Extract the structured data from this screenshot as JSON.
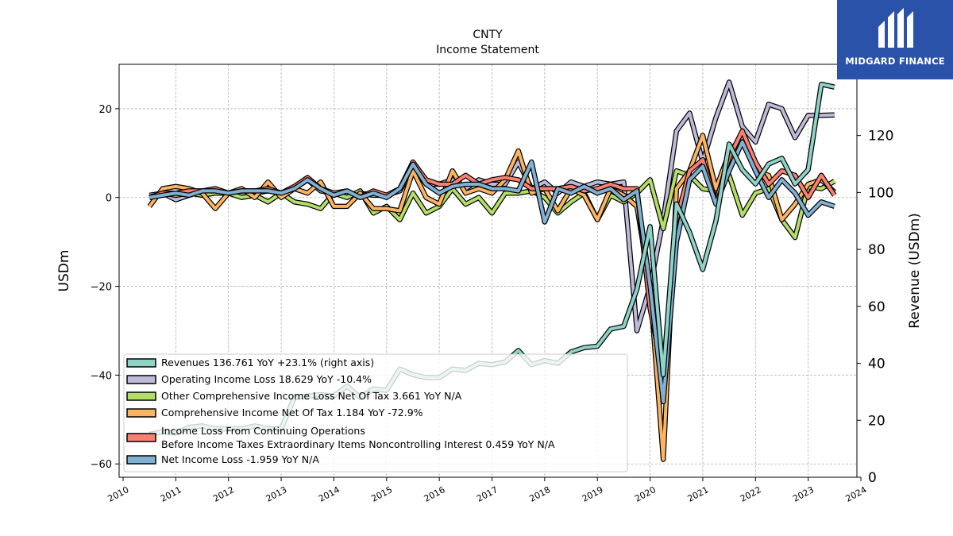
{
  "brand": {
    "name": "MIDGARD FINANCE",
    "bg": "#2a52a8"
  },
  "chart_data": {
    "type": "line",
    "title": "CNTY",
    "subtitle": "Income Statement",
    "ylabel_left": "USDm",
    "ylabel_right": "Revenue (USDm)",
    "xlim": [
      2010,
      2024
    ],
    "ylim_left": [
      -63,
      30
    ],
    "ylim_right": [
      0,
      145
    ],
    "x_ticks": [
      "2010",
      "2011",
      "2012",
      "2013",
      "2014",
      "2015",
      "2016",
      "2017",
      "2018",
      "2019",
      "2020",
      "2021",
      "2022",
      "2023",
      "2024"
    ],
    "y_ticks_left": [
      "−60",
      "−40",
      "−20",
      "0",
      "20"
    ],
    "y_ticks_right": [
      "0",
      "20",
      "40",
      "60",
      "80",
      "100",
      "120"
    ],
    "grid": true,
    "legend_position": "lower-left",
    "series": [
      {
        "name": "Revenues  136.761 YoY +23.1% (right axis)",
        "color": "#8dd3c7",
        "axis": "right",
        "z": 6,
        "x": [
          2010.5,
          2010.75,
          2011.0,
          2011.25,
          2011.5,
          2011.75,
          2012.0,
          2012.25,
          2012.5,
          2012.75,
          2013.0,
          2013.25,
          2013.5,
          2013.75,
          2014.0,
          2014.25,
          2014.5,
          2014.75,
          2015.0,
          2015.25,
          2015.5,
          2015.75,
          2016.0,
          2016.25,
          2016.5,
          2016.75,
          2017.0,
          2017.25,
          2017.5,
          2017.75,
          2018.0,
          2018.25,
          2018.5,
          2018.75,
          2019.0,
          2019.25,
          2019.5,
          2019.75,
          2020.0,
          2020.25,
          2020.5,
          2020.75,
          2021.0,
          2021.25,
          2021.5,
          2021.75,
          2022.0,
          2022.25,
          2022.5,
          2022.75,
          2023.0,
          2023.25,
          2023.5
        ],
        "values": [
          15,
          16,
          15.5,
          17.5,
          18,
          17,
          17,
          17,
          18,
          17,
          17,
          28,
          28.5,
          29,
          28.5,
          32,
          28,
          31,
          30.5,
          38,
          36,
          35,
          35,
          38,
          37.5,
          40,
          39.5,
          40.5,
          44.5,
          39.5,
          41,
          40,
          44,
          45.5,
          46,
          52,
          53,
          66,
          88,
          36,
          96,
          86,
          73,
          90,
          117,
          108,
          103,
          110,
          112,
          103,
          108,
          138,
          137
        ]
      },
      {
        "name": "Operating Income Loss  18.629 YoY -10.4%",
        "color": "#bebada",
        "axis": "left",
        "z": 1,
        "x": [
          2010.5,
          2010.75,
          2011.0,
          2011.25,
          2011.5,
          2011.75,
          2012.0,
          2012.25,
          2012.5,
          2012.75,
          2013.0,
          2013.25,
          2013.5,
          2013.75,
          2014.0,
          2014.25,
          2014.5,
          2014.75,
          2015.0,
          2015.25,
          2015.5,
          2015.75,
          2016.0,
          2016.25,
          2016.5,
          2016.75,
          2017.0,
          2017.25,
          2017.5,
          2017.75,
          2018.0,
          2018.25,
          2018.5,
          2018.75,
          2019.0,
          2019.25,
          2019.5,
          2019.75,
          2020.0,
          2020.25,
          2020.5,
          2020.75,
          2021.0,
          2021.25,
          2021.5,
          2021.75,
          2022.0,
          2022.25,
          2022.5,
          2022.75,
          2023.0,
          2023.25,
          2023.5
        ],
        "values": [
          0.5,
          1,
          -0.5,
          0.5,
          1.5,
          1,
          1,
          0.5,
          1,
          1.5,
          1,
          2,
          4,
          1.5,
          1,
          0.5,
          1,
          0.5,
          0.5,
          1.5,
          7,
          3,
          3,
          4,
          2,
          4,
          3,
          3,
          8,
          2,
          3.5,
          1,
          3.5,
          2.5,
          3.5,
          3,
          3.5,
          -30,
          -20,
          -5,
          15,
          19,
          8,
          18,
          26,
          16,
          12.5,
          21,
          20,
          13.5,
          18.5,
          18.5,
          18.6
        ]
      },
      {
        "name": "Other Comprehensive Income Loss Net Of Tax  3.661 YoY N/A",
        "color": "#b3de69",
        "axis": "left",
        "z": 2,
        "x": [
          2010.5,
          2010.75,
          2011.0,
          2011.25,
          2011.5,
          2011.75,
          2012.0,
          2012.25,
          2012.5,
          2012.75,
          2013.0,
          2013.25,
          2013.5,
          2013.75,
          2014.0,
          2014.25,
          2014.5,
          2014.75,
          2015.0,
          2015.25,
          2015.5,
          2015.75,
          2016.0,
          2016.25,
          2016.5,
          2016.75,
          2017.0,
          2017.25,
          2017.5,
          2017.75,
          2018.0,
          2018.25,
          2018.5,
          2018.75,
          2019.0,
          2019.25,
          2019.5,
          2019.75,
          2020.0,
          2020.25,
          2020.5,
          2020.75,
          2021.0,
          2021.25,
          2021.5,
          2021.75,
          2022.0,
          2022.25,
          2022.5,
          2022.75,
          2023.0,
          2023.25,
          2023.5
        ],
        "values": [
          0,
          1,
          0.5,
          1,
          0.5,
          1,
          1,
          0,
          0.5,
          -1,
          1,
          -1,
          -1.5,
          -2.5,
          1,
          0,
          1.5,
          -3.5,
          -2,
          -5,
          1,
          -3.5,
          -2,
          2,
          -1.5,
          0,
          -3.5,
          1,
          1,
          1.5,
          0,
          -3.5,
          -1,
          1,
          -5,
          0.5,
          -1,
          1,
          4,
          -7,
          6,
          5,
          2,
          1.5,
          5,
          -4,
          1,
          2,
          -5,
          -9,
          2.5,
          2,
          3.7
        ]
      },
      {
        "name": "Comprehensive Income Net Of Tax  1.184 YoY -72.9%",
        "color": "#fdb462",
        "axis": "left",
        "z": 3,
        "x": [
          2010.5,
          2010.75,
          2011.0,
          2011.25,
          2011.5,
          2011.75,
          2012.0,
          2012.25,
          2012.5,
          2012.75,
          2013.0,
          2013.25,
          2013.5,
          2013.75,
          2014.0,
          2014.25,
          2014.5,
          2014.75,
          2015.0,
          2015.25,
          2015.5,
          2015.75,
          2016.0,
          2016.25,
          2016.5,
          2016.75,
          2017.0,
          2017.25,
          2017.5,
          2017.75,
          2018.0,
          2018.25,
          2018.5,
          2018.75,
          2019.0,
          2019.25,
          2019.5,
          2019.75,
          2020.0,
          2020.25,
          2020.5,
          2020.75,
          2021.0,
          2021.25,
          2021.5,
          2021.75,
          2022.0,
          2022.25,
          2022.5,
          2022.75,
          2023.0,
          2023.25,
          2023.5
        ],
        "values": [
          -2,
          2,
          2.5,
          2,
          1,
          -2.5,
          1,
          2,
          0,
          3.5,
          0,
          2,
          1,
          3.5,
          -2,
          -2,
          1,
          -2.5,
          -2.5,
          -3,
          6,
          0,
          -1.5,
          6,
          1,
          2,
          1,
          4,
          10.5,
          1,
          2,
          -3,
          2,
          0.5,
          -5,
          2,
          0.5,
          -2,
          -20,
          -59,
          2,
          6,
          14,
          2,
          10,
          14,
          6,
          5,
          -5,
          -1.5,
          3,
          4,
          1.2
        ]
      },
      {
        "name": "Income Loss From Continuing Operations\nBefore Income Taxes Extraordinary Items Noncontrolling Interest  0.459 YoY N/A",
        "color": "#fb8072",
        "axis": "left",
        "z": 4,
        "x": [
          2010.5,
          2010.75,
          2011.0,
          2011.25,
          2011.5,
          2011.75,
          2012.0,
          2012.25,
          2012.5,
          2012.75,
          2013.0,
          2013.25,
          2013.5,
          2013.75,
          2014.0,
          2014.25,
          2014.5,
          2014.75,
          2015.0,
          2015.25,
          2015.5,
          2015.75,
          2016.0,
          2016.25,
          2016.5,
          2016.75,
          2017.0,
          2017.25,
          2017.5,
          2017.75,
          2018.0,
          2018.25,
          2018.5,
          2018.75,
          2019.0,
          2019.25,
          2019.5,
          2019.75,
          2020.0,
          2020.25,
          2020.5,
          2020.75,
          2021.0,
          2021.25,
          2021.5,
          2021.75,
          2022.0,
          2022.25,
          2022.5,
          2022.75,
          2023.0,
          2023.25,
          2023.5
        ],
        "values": [
          0,
          1,
          1,
          1.5,
          1.5,
          2,
          1,
          1.5,
          1.5,
          2,
          1,
          2.5,
          4.5,
          2,
          1,
          1.5,
          0,
          1.5,
          0.5,
          2,
          8,
          4,
          3,
          3,
          5,
          3,
          4,
          4.5,
          4,
          2,
          2,
          2,
          2.5,
          1.5,
          2,
          3,
          2,
          2,
          -25,
          -40,
          -5,
          6,
          8.5,
          -1,
          9,
          15,
          8,
          3,
          6,
          5,
          0,
          5,
          0.5
        ]
      },
      {
        "name": "Net Income Loss  -1.959 YoY N/A",
        "color": "#80b1d3",
        "axis": "left",
        "z": 5,
        "x": [
          2010.5,
          2010.75,
          2011.0,
          2011.25,
          2011.5,
          2011.75,
          2012.0,
          2012.25,
          2012.5,
          2012.75,
          2013.0,
          2013.25,
          2013.5,
          2013.75,
          2014.0,
          2014.25,
          2014.5,
          2014.75,
          2015.0,
          2015.25,
          2015.5,
          2015.75,
          2016.0,
          2016.25,
          2016.5,
          2016.75,
          2017.0,
          2017.25,
          2017.5,
          2017.75,
          2018.0,
          2018.25,
          2018.5,
          2018.75,
          2019.0,
          2019.25,
          2019.5,
          2019.75,
          2020.0,
          2020.25,
          2020.5,
          2020.75,
          2021.0,
          2021.25,
          2021.5,
          2021.75,
          2022.0,
          2022.25,
          2022.5,
          2022.75,
          2023.0,
          2023.25,
          2023.5
        ],
        "values": [
          0,
          0.5,
          1,
          0.5,
          1.5,
          1.5,
          1,
          1.5,
          1.5,
          1.5,
          1,
          2,
          4,
          2,
          0.5,
          1.5,
          0,
          1,
          0,
          2,
          7.5,
          3,
          1,
          2.5,
          3,
          3,
          2,
          2,
          1.5,
          8,
          -5.5,
          2,
          1,
          2.5,
          1,
          2,
          -0.5,
          1.5,
          -20,
          -46,
          -10,
          4,
          7,
          -1.5,
          6,
          12.5,
          6,
          0,
          4,
          1,
          -4,
          -1,
          -2
        ]
      }
    ]
  }
}
